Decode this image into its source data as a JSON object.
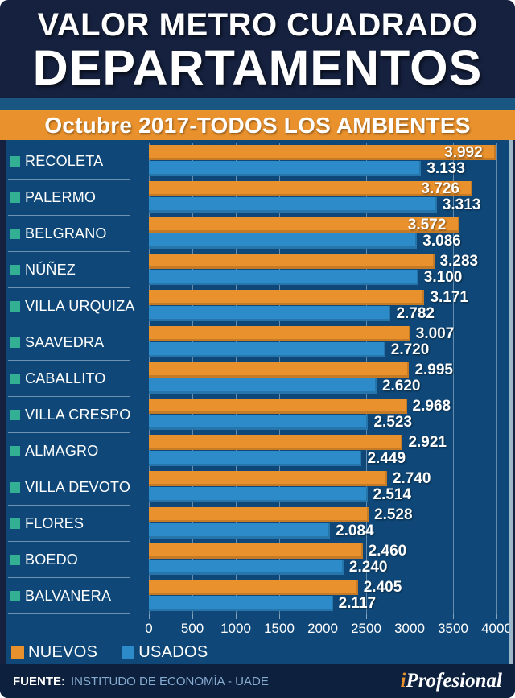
{
  "header": {
    "title_line1": "VALOR METRO CUADRADO",
    "title_line2": "DEPARTAMENTOS",
    "subtitle": "Octubre 2017-TODOS LOS AMBIENTES"
  },
  "chart_data": {
    "type": "bar",
    "orientation": "horizontal",
    "title": "Valor metro cuadrado departamentos - Octubre 2017 - Todos los ambientes",
    "categories": [
      "RECOLETA",
      "PALERMO",
      "BELGRANO",
      "NÚÑEZ",
      "VILLA URQUIZA",
      "SAAVEDRA",
      "CABALLITO",
      "VILLA CRESPO",
      "ALMAGRO",
      "VILLA DEVOTO",
      "FLORES",
      "BOEDO",
      "BALVANERA"
    ],
    "series": [
      {
        "name": "NUEVOS",
        "color": "#E8912D",
        "values": [
          3992,
          3726,
          3572,
          3283,
          3171,
          3007,
          2995,
          2968,
          2921,
          2740,
          2528,
          2460,
          2405
        ],
        "labels": [
          "3.992",
          "3.726",
          "3.572",
          "3.283",
          "3.171",
          "3.007",
          "2.995",
          "2.968",
          "2.921",
          "2.740",
          "2.528",
          "2.460",
          "2.405"
        ]
      },
      {
        "name": "USADOS",
        "color": "#2E8BC9",
        "values": [
          3133,
          3313,
          3086,
          3100,
          2782,
          2720,
          2620,
          2523,
          2449,
          2514,
          2084,
          2240,
          2117
        ],
        "labels": [
          "3.133",
          "3.313",
          "3.086",
          "3.100",
          "2.782",
          "2.720",
          "2.620",
          "2.523",
          "2.449",
          "2.514",
          "2.084",
          "2.240",
          "2.117"
        ]
      }
    ],
    "xlim": [
      0,
      4000
    ],
    "x_ticks": [
      0,
      500,
      1000,
      1500,
      2000,
      2500,
      3000,
      3500,
      4000
    ],
    "grid": true,
    "legend_position": "bottom-left"
  },
  "footer": {
    "source_label": "FUENTE:",
    "source_text": "INSTITUDO DE ECONOMÍA - UADE",
    "logo_prefix": "i",
    "logo_text": "Profesional"
  },
  "colors": {
    "header_bg": "#15213F",
    "strip": "#1A5682",
    "banner": "#E8912D",
    "chart_bg": "#0F4878",
    "bar_nuevos": "#E8912D",
    "bar_usados": "#2E8BC9",
    "bullet": "#33B093",
    "footer_bg": "#0D203E"
  }
}
